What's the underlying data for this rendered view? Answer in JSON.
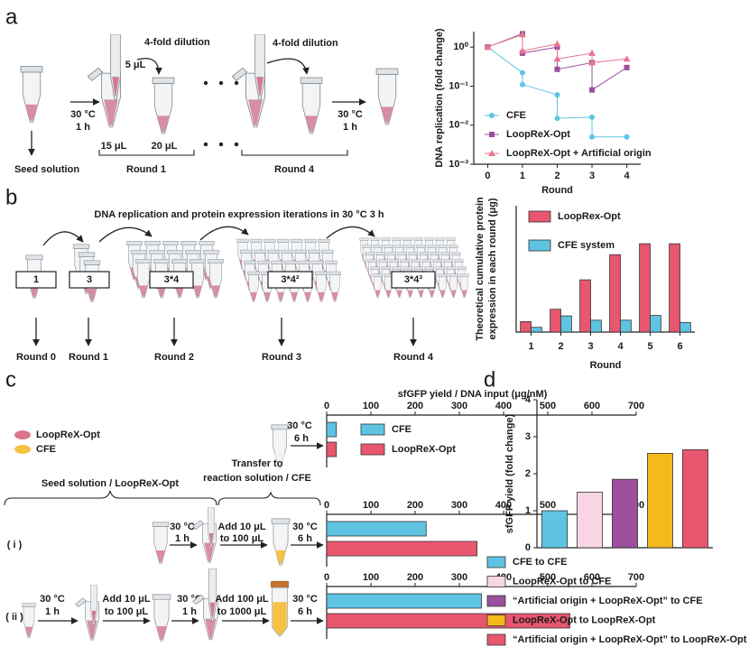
{
  "panel_labels": [
    "a",
    "b",
    "c",
    "d"
  ],
  "panel_a": {
    "labels": [
      "4-fold dilution",
      "5 μL",
      "4-fold dilution",
      "30 °C",
      "1 h",
      "30 °C",
      "1 h",
      "15 μL",
      "20 μL",
      "Seed solution",
      "Round 1",
      "Round 4"
    ]
  },
  "panel_b": {
    "title": "DNA replication and protein expression iterations in 30 °C 3 h",
    "boxes": [
      "1",
      "3",
      "3*4",
      "3*4²",
      "3*4³"
    ],
    "rounds": [
      "Round 0",
      "Round 1",
      "Round 2",
      "Round 3",
      "Round 4"
    ]
  },
  "panel_c": {
    "legend": [
      "LoopReX-Opt",
      "CFE"
    ],
    "top": [
      "30 °C",
      "6 h"
    ],
    "brackets": [
      "Seed solution / LoopReX-Opt",
      "Transfer to",
      "reaction solution / CFE"
    ],
    "row_i": [
      "30 °C",
      "1 h",
      "Add 10 μL",
      "to 100 μL",
      "30 °C",
      "6 h"
    ],
    "row_ii": [
      "30 °C",
      "1 h",
      "Add 10 μL",
      "to 100 μL",
      "30 °C",
      "1 h",
      "Add 100 μL",
      "to 1000 μL",
      "30 °C",
      "6 h"
    ]
  },
  "chart_data": [
    {
      "type": "line",
      "x_label": "Round",
      "y_label": "DNA replication (fold change)",
      "x": [
        0,
        1,
        1,
        2,
        2,
        3,
        3,
        4
      ],
      "xlim": [
        -0.4,
        4.4
      ],
      "xticks": [
        0,
        1,
        2,
        3,
        4
      ],
      "log_y": true,
      "ylim": [
        0.001,
        2.5
      ],
      "yticks": [
        {
          "value": 0.001,
          "label": "10⁻³"
        },
        {
          "value": 0.01,
          "label": "10⁻²"
        },
        {
          "value": 0.1,
          "label": "10⁻¹"
        },
        {
          "value": 1,
          "label": "10⁰"
        }
      ],
      "legend": "lower left",
      "series": [
        {
          "name": "CFE",
          "color": "#5ec4e2",
          "marker": "circle",
          "values": [
            1.0,
            0.22,
            0.11,
            0.06,
            0.015,
            0.016,
            0.005,
            0.005
          ]
        },
        {
          "name": "LoopReX-Opt",
          "color": "#9b4f9e",
          "marker": "square",
          "values": [
            1.0,
            2.2,
            0.7,
            1.0,
            0.27,
            0.4,
            0.08,
            0.3
          ]
        },
        {
          "name": "LoopReX-Opt + Artificial origin",
          "color": "#e8768f",
          "marker": "triangle",
          "values": [
            1.0,
            2.1,
            0.8,
            1.2,
            0.5,
            0.7,
            0.4,
            0.5
          ]
        }
      ]
    },
    {
      "type": "bar",
      "x_label": "Round",
      "y_label": [
        "Theoretical cumulative protein",
        "expression in each round (μg)"
      ],
      "categories": [
        "1",
        "2",
        "3",
        "4",
        "5",
        "6"
      ],
      "ylim": [
        0,
        266
      ],
      "legend": "upper left",
      "series": [
        {
          "name": "LoopRex-Opt",
          "color": "#e8566f",
          "values": [
            22,
            48,
            110,
            163,
            186,
            186
          ]
        },
        {
          "name": "CFE system",
          "color": "#5ec4e2",
          "values": [
            10,
            34,
            25,
            25,
            35,
            20
          ]
        }
      ]
    },
    {
      "type": "bar",
      "orientation": "horizontal",
      "x_label": "sfGFP yield / DNA input (μg/nM)",
      "categories": [
        null,
        "( i )",
        "( ii )"
      ],
      "xlim": [
        0,
        700
      ],
      "xticks": [
        0,
        100,
        200,
        300,
        400,
        500,
        600,
        700
      ],
      "series": [
        {
          "name": "CFE",
          "color": "#5ec4e2",
          "values": [
            22,
            225,
            350
          ]
        },
        {
          "name": "LoopReX-Opt",
          "color": "#e8566f",
          "values": [
            22,
            340,
            550
          ]
        }
      ]
    },
    {
      "type": "bar",
      "y_label": "sfGFP yield  (fold change)",
      "categories": [
        "CFE to CFE",
        "LoopReX-Opt to CFE",
        "“Artificial origin + LoopReX-Opt” to CFE",
        "LoopReX-Opt to LoopReX-Opt",
        "“Artificial origin + LoopReX-Opt” to LoopReX-Opt"
      ],
      "colors": [
        "#5ec4e2",
        "#f9d6e6",
        "#9b4f9e",
        "#f4b91c",
        "#e8566f"
      ],
      "values": [
        1.0,
        1.5,
        1.85,
        2.55,
        2.65
      ],
      "ylim": [
        0,
        4
      ],
      "yticks": [
        0,
        1,
        2,
        3,
        4
      ],
      "legend": "below"
    }
  ]
}
